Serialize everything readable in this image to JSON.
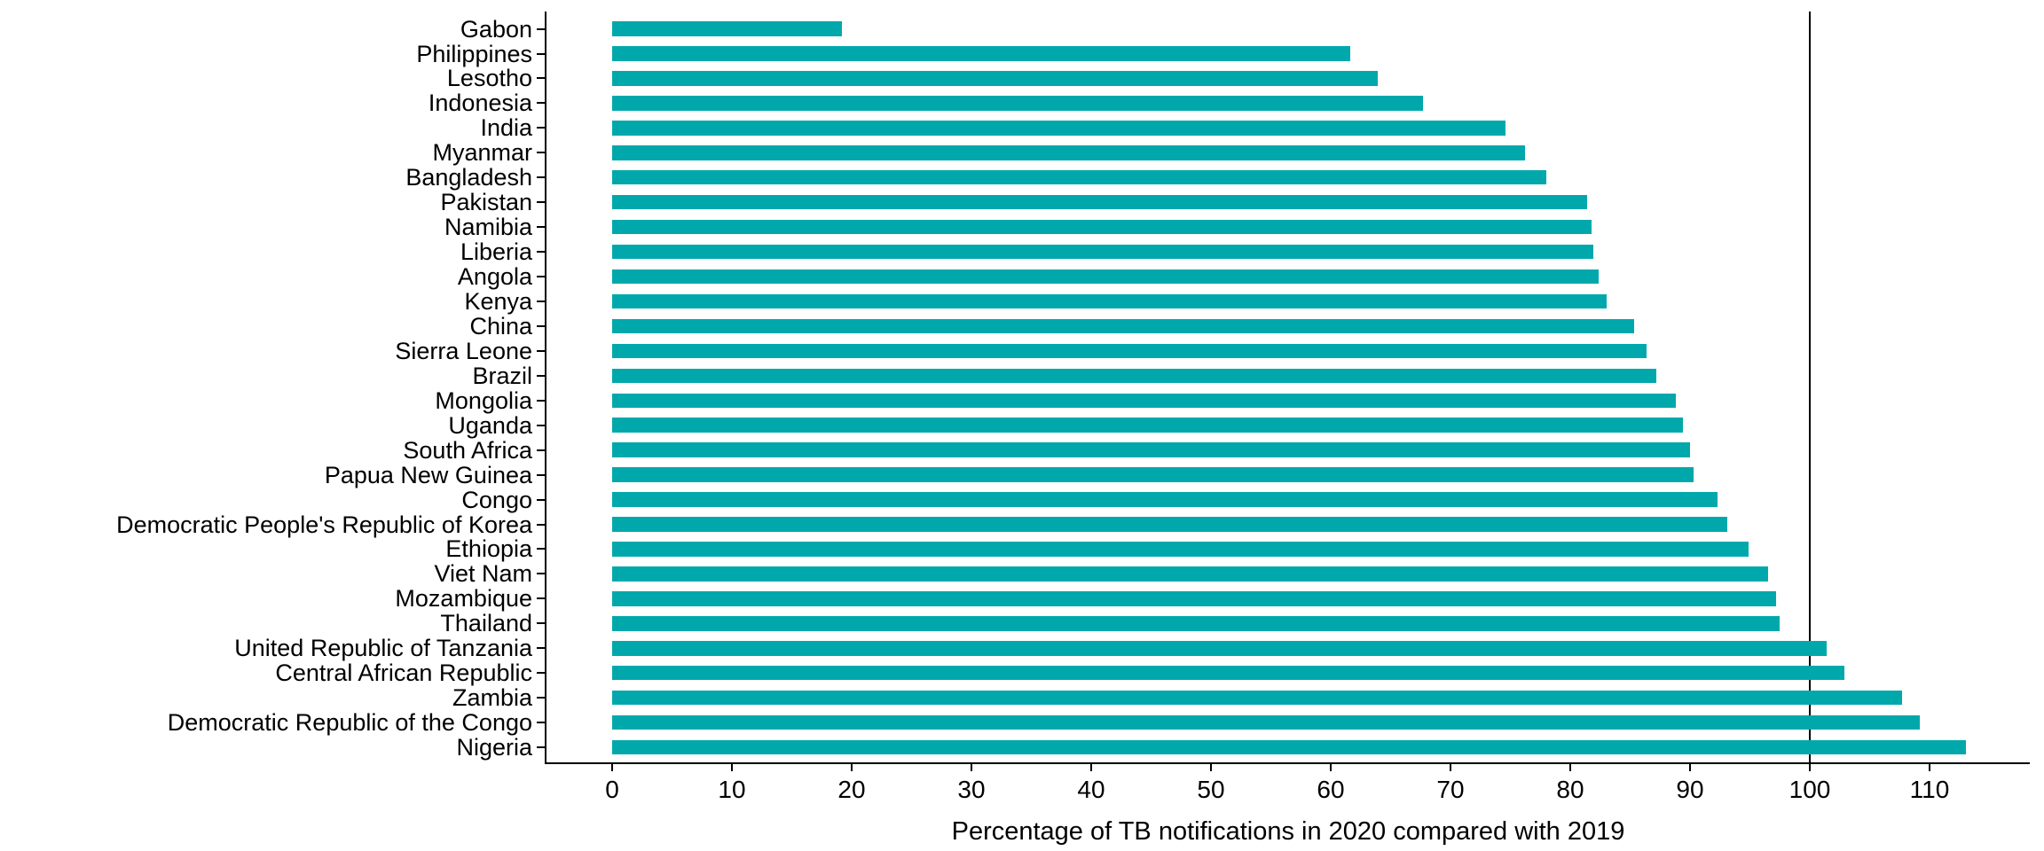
{
  "chart_data": {
    "type": "bar",
    "orientation": "horizontal",
    "title": "",
    "xlabel": "Percentage of TB notifications in 2020 compared with 2019",
    "ylabel": "",
    "categories": [
      "Gabon",
      "Philippines",
      "Lesotho",
      "Indonesia",
      "India",
      "Myanmar",
      "Bangladesh",
      "Pakistan",
      "Namibia",
      "Liberia",
      "Angola",
      "Kenya",
      "China",
      "Sierra Leone",
      "Brazil",
      "Mongolia",
      "Uganda",
      "South Africa",
      "Papua New Guinea",
      "Congo",
      "Democratic People's Republic of Korea",
      "Ethiopia",
      "Viet Nam",
      "Mozambique",
      "Thailand",
      "United Republic of Tanzania",
      "Central African Republic",
      "Zambia",
      "Democratic Republic of the Congo",
      "Nigeria"
    ],
    "values": [
      19.2,
      61.6,
      63.9,
      67.7,
      74.6,
      76.2,
      78.0,
      81.4,
      81.8,
      81.9,
      82.4,
      83.0,
      85.3,
      86.4,
      87.2,
      88.8,
      89.4,
      90.0,
      90.3,
      92.3,
      93.1,
      94.9,
      96.5,
      97.2,
      97.5,
      101.4,
      102.9,
      107.7,
      109.2,
      113.0
    ],
    "xlim": [
      0,
      118
    ],
    "xticks": [
      "0",
      "10",
      "20",
      "30",
      "40",
      "50",
      "60",
      "70",
      "80",
      "90",
      "100",
      "110"
    ],
    "xtick_values": [
      0,
      10,
      20,
      30,
      40,
      50,
      60,
      70,
      80,
      90,
      100,
      110
    ],
    "reference_line_x": 100,
    "bar_color": "#00A8AC",
    "axis_color": "#000000",
    "grid": false,
    "legend": false
  }
}
